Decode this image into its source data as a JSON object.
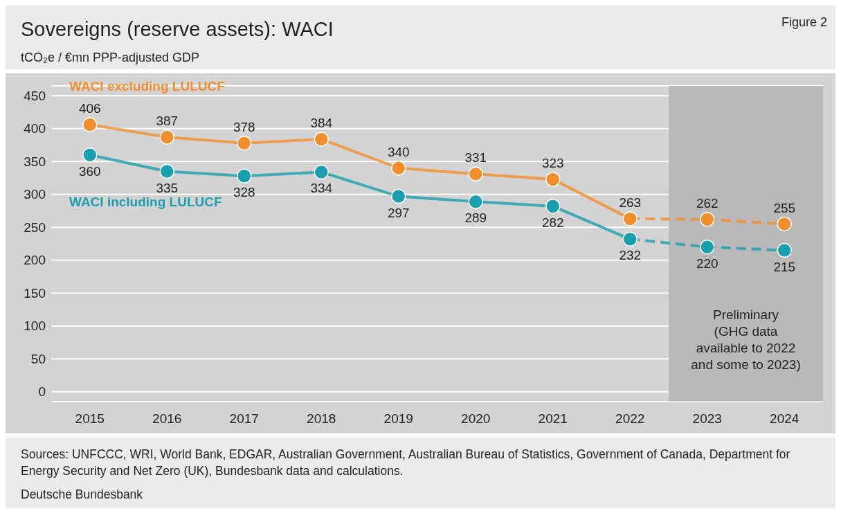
{
  "chart_data": {
    "type": "line",
    "title": "Sovereigns (reserve assets): WACI",
    "ylabel": "tCO₂e / €mn PPP-adjusted GDP",
    "categories": [
      "2015",
      "2016",
      "2017",
      "2018",
      "2019",
      "2020",
      "2021",
      "2022",
      "2023",
      "2024"
    ],
    "series": [
      {
        "name": "WACI excluding LULUCF",
        "color": "#f28e2b",
        "line_style": "solid",
        "values": [
          406,
          387,
          378,
          384,
          340,
          331,
          323,
          263,
          null,
          null
        ],
        "value_labels": [
          "406",
          "387",
          "378",
          "384",
          "340",
          "331",
          "323",
          "263",
          null,
          null
        ]
      },
      {
        "color": "#f28e2b",
        "line_style": "dashed",
        "values": [
          null,
          null,
          null,
          null,
          null,
          null,
          null,
          263,
          262,
          255
        ],
        "value_labels": [
          null,
          null,
          null,
          null,
          null,
          null,
          null,
          null,
          "262",
          "255"
        ]
      },
      {
        "name": "WACI including LULUCF",
        "color": "#1a9fae",
        "line_style": "solid",
        "values": [
          360,
          335,
          328,
          334,
          297,
          289,
          282,
          232,
          null,
          null
        ],
        "value_labels": [
          "360",
          "335",
          "328",
          "334",
          "297",
          "289",
          "282",
          "232",
          null,
          null
        ]
      },
      {
        "color": "#1a9fae",
        "line_style": "dashed",
        "values": [
          null,
          null,
          null,
          null,
          null,
          null,
          null,
          232,
          220,
          215
        ],
        "value_labels": [
          null,
          null,
          null,
          null,
          null,
          null,
          null,
          null,
          "220",
          "215"
        ]
      }
    ],
    "ylim": [
      -15,
      465
    ],
    "yticks": [
      0,
      50,
      100,
      150,
      200,
      250,
      300,
      350,
      400,
      450
    ],
    "grid": "y",
    "legend": false,
    "marker": "circle",
    "bands": [
      {
        "axis": "x",
        "from": "2023",
        "to": "2024",
        "label": "Preliminary (GHG data available to 2022 and some to 2023)",
        "color": "#b9b9b9"
      }
    ],
    "annotations": [
      "Figure 2",
      "Sources: UNFCCC, WRI, World Bank, EDGAR, Australian Government, Australian Bureau of Statistics, Government of Canada, Department for Energy Security and Net Zero (UK), Bundesbank data and calculations.",
      "Deutsche Bundesbank"
    ]
  }
}
